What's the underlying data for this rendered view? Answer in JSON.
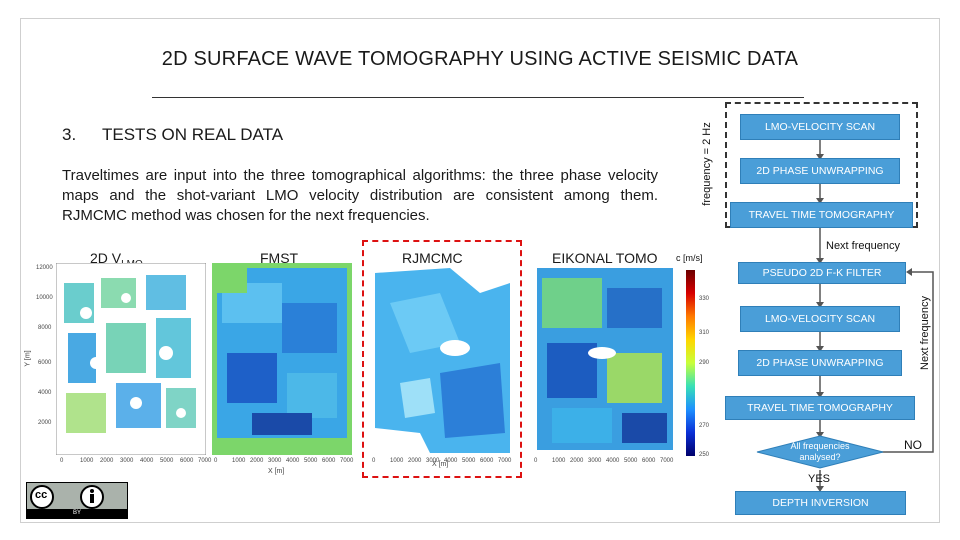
{
  "slide": {
    "title": "2D SURFACE WAVE TOMOGRAPHY USING ACTIVE SEISMIC DATA",
    "section_number": "3.",
    "section_title": "TESTS ON REAL DATA",
    "paragraph": "Traveltimes are input into the three tomographical algorithms: the three phase velocity maps and the shot-variant LMO velocity distribution are consistent among them. RJMCMC method was chosen for the next frequencies."
  },
  "panels": {
    "vlmo_label": "2D V",
    "vlmo_sub": "LMO",
    "fmst_label": "FMST",
    "rjmcmc_label": "RJMCMC",
    "eikonal_label": "EIKONAL TOMO",
    "colorbar_unit": "c [m/s]",
    "x_axis_label": "X [m]",
    "y_axis_label": "Y [m]",
    "y_ticks": [
      "12000",
      "10000",
      "8000",
      "6000",
      "4000",
      "2000"
    ],
    "x_ticks_a": [
      "0",
      "1000",
      "2000",
      "3000",
      "4000",
      "5000",
      "6000",
      "7000"
    ],
    "x_ticks_b": [
      "0",
      "1000",
      "2000",
      "3000",
      "4000",
      "5000",
      "6000",
      "7000"
    ],
    "x_ticks_c": [
      "0",
      "1000",
      "2000",
      "3000",
      "4000",
      "5000",
      "6000",
      "7000"
    ],
    "x_ticks_d": [
      "0",
      "1000",
      "2000",
      "3000",
      "4000",
      "5000",
      "6000",
      "7000"
    ],
    "colorbar_ticks": [
      "330",
      "310",
      "290",
      "270",
      "250"
    ]
  },
  "flow": {
    "top_label": "frequency = 2 Hz",
    "steps_top": [
      "LMO-VELOCITY SCAN",
      "2D PHASE UNWRAPPING",
      "TRAVEL TIME TOMOGRAPHY"
    ],
    "next_frequency": "Next frequency",
    "steps_loop": [
      "PSEUDO 2D F-K FILTER",
      "LMO-VELOCITY SCAN",
      "2D PHASE UNWRAPPING",
      "TRAVEL TIME TOMOGRAPHY"
    ],
    "side_label": "Next frequency",
    "decision": "All frequencies analysed?",
    "no": "NO",
    "yes": "YES",
    "final": "DEPTH INVERSION"
  },
  "license": {
    "badge": "BY",
    "cc_text": "cc"
  },
  "colors": {
    "flow_box": "#4a9ed8",
    "highlight": "#dd1111"
  }
}
